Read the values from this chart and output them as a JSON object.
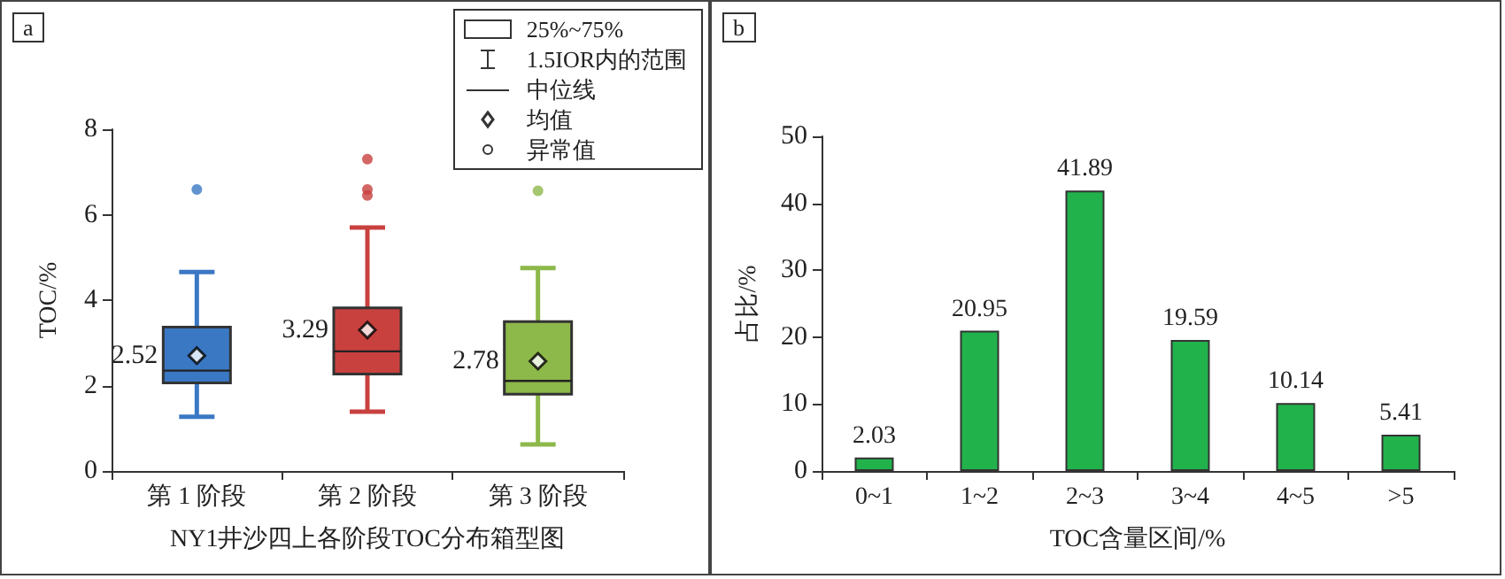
{
  "chart_data": [
    {
      "type": "box",
      "title": "a",
      "xlabel": "NY1井沙四上各阶段TOC分布箱型图",
      "ylabel": "TOC/%",
      "categories": [
        "第 1 阶段",
        "第 2 阶段",
        "第 3 阶段"
      ],
      "ylim": [
        0,
        8
      ],
      "yticks": [
        0,
        2,
        4,
        6,
        8
      ],
      "series": [
        {
          "type": "box",
          "colors": [
            "#3a78c3",
            "#c8413f",
            "#8db84a"
          ],
          "boxes": [
            {
              "low": 1.27,
              "q1": 2.06,
              "median": 2.35,
              "q3": 3.37,
              "high": 4.66
            },
            {
              "low": 1.39,
              "q1": 2.27,
              "median": 2.8,
              "q3": 3.82,
              "high": 5.7
            },
            {
              "low": 0.62,
              "q1": 1.8,
              "median": 2.11,
              "q3": 3.5,
              "high": 4.75
            }
          ]
        },
        {
          "type": "scatter",
          "color": "#000000",
          "marker": "diamond",
          "x": [
            "第 1 阶段",
            "第 2 阶段",
            "第 3 阶段"
          ],
          "values": [
            2.7,
            3.3,
            2.57
          ]
        },
        {
          "type": "scatter",
          "marker": "circle",
          "x": [
            "第 1 阶段",
            "第 2 阶段",
            "第 2 阶段",
            "第 2 阶段",
            "第 3 阶段"
          ],
          "values": [
            6.59,
            7.3,
            6.59,
            6.45,
            6.56
          ],
          "colors": [
            "#3a78c3",
            "#c8413f",
            "#c8413f",
            "#c8413f",
            "#8db84a"
          ]
        }
      ],
      "annotations": [
        {
          "text": "2.52",
          "x": "第 1 阶段",
          "y": 2.7
        },
        {
          "text": "3.29",
          "x": "第 2 阶段",
          "y": 3.3
        },
        {
          "text": "2.78",
          "x": "第 3 阶段",
          "y": 2.57
        },
        "25%~75%",
        "1.5IOR内的范围",
        "中位线",
        "均值",
        "异常值"
      ]
    },
    {
      "type": "bar",
      "title": "b",
      "xlabel": "TOC含量区间/%",
      "ylabel": "占比/%",
      "categories": [
        "0~1",
        "1~2",
        "2~3",
        "3~4",
        "4~5",
        ">5"
      ],
      "values": [
        2.03,
        20.95,
        41.89,
        19.59,
        10.14,
        5.41
      ],
      "color": "#22b24c",
      "ylim": [
        0,
        50
      ],
      "yticks": [
        0,
        10,
        20,
        30,
        40,
        50
      ],
      "data_labels": true
    }
  ]
}
